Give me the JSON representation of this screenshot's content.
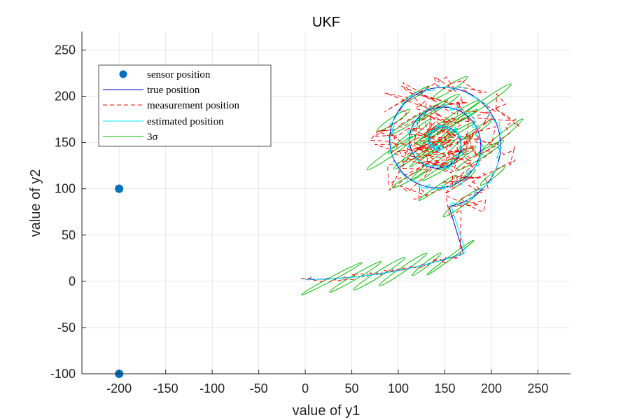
{
  "chart_data": {
    "type": "line",
    "title": "UKF",
    "xlabel": "value of y1",
    "ylabel": "value of y2",
    "xlim": [
      -240,
      285
    ],
    "ylim": [
      -100,
      270
    ],
    "xticks": [
      -200,
      -150,
      -100,
      -50,
      0,
      50,
      100,
      150,
      200,
      250
    ],
    "yticks": [
      -100,
      -50,
      0,
      50,
      100,
      150,
      200,
      250
    ],
    "xtick_labels": [
      "-200",
      "-150",
      "-100",
      "-50",
      "0",
      "50",
      "100",
      "150",
      "200",
      "250"
    ],
    "ytick_labels": [
      "-100",
      "-50",
      "0",
      "50",
      "100",
      "150",
      "200",
      "250"
    ],
    "grid": true,
    "legend_position": "top-left",
    "sensor_positions": [
      [
        -200,
        100
      ],
      [
        -200,
        -100
      ]
    ],
    "spiral": {
      "x0": 0,
      "y0": 2,
      "cx": 145,
      "cy": 150
    },
    "series": [
      {
        "name": "sensor position",
        "style": "marker",
        "color": "#0072BD"
      },
      {
        "name": "true position",
        "style": "solid",
        "color": "#0000CC"
      },
      {
        "name": "measurement position",
        "style": "dashed",
        "color": "#FF0000"
      },
      {
        "name": "estimated position",
        "style": "solid",
        "color": "#00E5EE"
      },
      {
        "name": "3σ",
        "style": "solid",
        "color": "#00C000"
      }
    ]
  }
}
